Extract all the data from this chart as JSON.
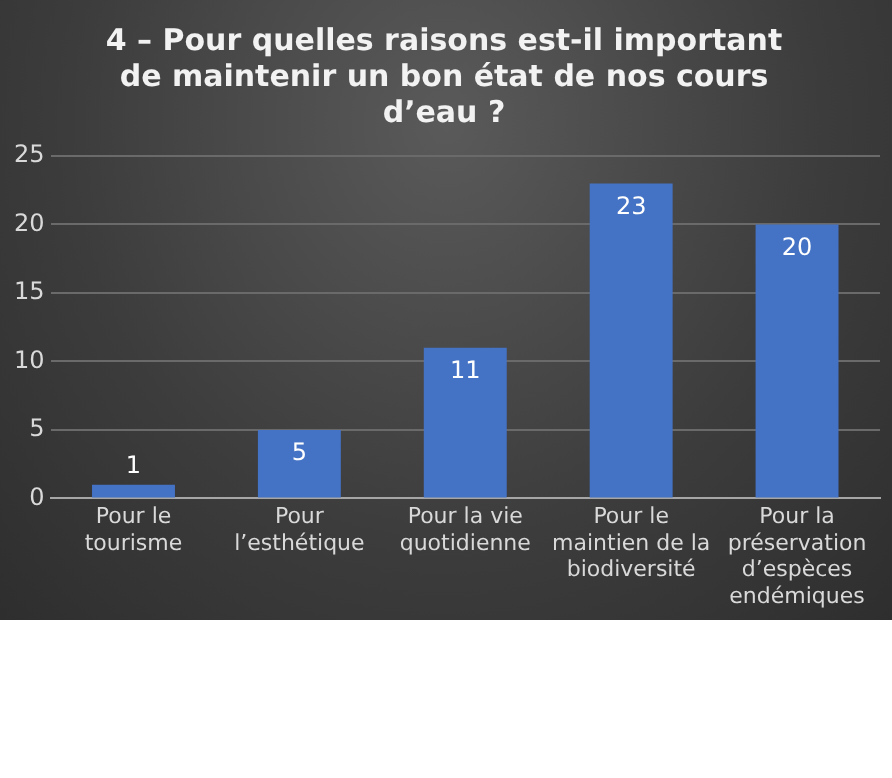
{
  "chart_data": {
    "type": "bar",
    "title": "4 – Pour quelles raisons est-il important de maintenir un bon état de nos cours d’eau ?",
    "categories": [
      "Pour le tourisme",
      "Pour l’esthétique",
      "Pour la vie quotidienne",
      "Pour le maintien de la biodiversité",
      "Pour la préservation d’espèces endémiques"
    ],
    "values": [
      1,
      5,
      11,
      23,
      20
    ],
    "color": "#4472c4",
    "ylim": [
      0,
      25
    ],
    "yticks": [
      0,
      5,
      10,
      15,
      20,
      25
    ],
    "grid": "y",
    "data_labels": true
  }
}
